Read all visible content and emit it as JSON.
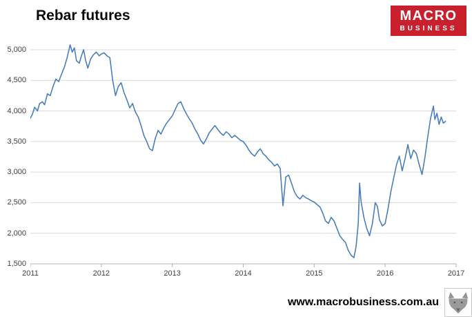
{
  "header": {
    "logo": {
      "line1": "MACRO",
      "line2": "BUSINESS",
      "bg_color": "#c8202c",
      "text_color": "#ffffff"
    }
  },
  "footer": {
    "url": "www.macrobusiness.com.au",
    "wolf_icon": "wolf-logo"
  },
  "chart_data": {
    "type": "line",
    "title": "Rebar futures",
    "xlabel": "",
    "ylabel": "",
    "xlim": [
      2011,
      2017
    ],
    "ylim": [
      1500,
      5000
    ],
    "xticks": [
      2011,
      2012,
      2013,
      2014,
      2015,
      2016,
      2017
    ],
    "yticks": [
      1500,
      2000,
      2500,
      3000,
      3500,
      4000,
      4500,
      5000
    ],
    "grid": "horizontal",
    "legend": "none",
    "line_color": "#4a7ebb",
    "grid_color": "#d9d9d9",
    "axis_color": "#b3b3b3",
    "series": [
      {
        "name": "Rebar futures",
        "points": [
          [
            2011.0,
            3880
          ],
          [
            2011.03,
            3950
          ],
          [
            2011.06,
            4060
          ],
          [
            2011.1,
            4000
          ],
          [
            2011.13,
            4120
          ],
          [
            2011.17,
            4150
          ],
          [
            2011.2,
            4100
          ],
          [
            2011.24,
            4280
          ],
          [
            2011.28,
            4250
          ],
          [
            2011.32,
            4400
          ],
          [
            2011.36,
            4520
          ],
          [
            2011.4,
            4480
          ],
          [
            2011.44,
            4600
          ],
          [
            2011.48,
            4720
          ],
          [
            2011.52,
            4880
          ],
          [
            2011.56,
            5080
          ],
          [
            2011.59,
            4960
          ],
          [
            2011.62,
            5030
          ],
          [
            2011.65,
            4820
          ],
          [
            2011.69,
            4780
          ],
          [
            2011.72,
            4900
          ],
          [
            2011.75,
            5000
          ],
          [
            2011.78,
            4820
          ],
          [
            2011.81,
            4700
          ],
          [
            2011.85,
            4850
          ],
          [
            2011.89,
            4920
          ],
          [
            2011.93,
            4960
          ],
          [
            2011.97,
            4900
          ],
          [
            2012.0,
            4930
          ],
          [
            2012.04,
            4950
          ],
          [
            2012.08,
            4900
          ],
          [
            2012.12,
            4870
          ],
          [
            2012.16,
            4500
          ],
          [
            2012.2,
            4250
          ],
          [
            2012.24,
            4400
          ],
          [
            2012.28,
            4460
          ],
          [
            2012.32,
            4300
          ],
          [
            2012.36,
            4180
          ],
          [
            2012.4,
            4050
          ],
          [
            2012.44,
            4120
          ],
          [
            2012.48,
            3980
          ],
          [
            2012.52,
            3900
          ],
          [
            2012.56,
            3760
          ],
          [
            2012.6,
            3600
          ],
          [
            2012.64,
            3500
          ],
          [
            2012.68,
            3380
          ],
          [
            2012.72,
            3350
          ],
          [
            2012.76,
            3550
          ],
          [
            2012.8,
            3680
          ],
          [
            2012.84,
            3620
          ],
          [
            2012.88,
            3720
          ],
          [
            2012.92,
            3800
          ],
          [
            2012.96,
            3860
          ],
          [
            2013.0,
            3920
          ],
          [
            2013.04,
            4020
          ],
          [
            2013.08,
            4120
          ],
          [
            2013.12,
            4150
          ],
          [
            2013.16,
            4040
          ],
          [
            2013.2,
            3950
          ],
          [
            2013.24,
            3870
          ],
          [
            2013.28,
            3800
          ],
          [
            2013.32,
            3700
          ],
          [
            2013.36,
            3620
          ],
          [
            2013.4,
            3520
          ],
          [
            2013.44,
            3460
          ],
          [
            2013.48,
            3540
          ],
          [
            2013.52,
            3640
          ],
          [
            2013.56,
            3700
          ],
          [
            2013.6,
            3760
          ],
          [
            2013.64,
            3700
          ],
          [
            2013.68,
            3640
          ],
          [
            2013.72,
            3600
          ],
          [
            2013.76,
            3660
          ],
          [
            2013.8,
            3620
          ],
          [
            2013.84,
            3560
          ],
          [
            2013.88,
            3600
          ],
          [
            2013.92,
            3560
          ],
          [
            2013.96,
            3520
          ],
          [
            2014.0,
            3500
          ],
          [
            2014.04,
            3440
          ],
          [
            2014.08,
            3360
          ],
          [
            2014.12,
            3300
          ],
          [
            2014.16,
            3260
          ],
          [
            2014.2,
            3330
          ],
          [
            2014.24,
            3380
          ],
          [
            2014.28,
            3300
          ],
          [
            2014.32,
            3260
          ],
          [
            2014.36,
            3200
          ],
          [
            2014.4,
            3160
          ],
          [
            2014.44,
            3100
          ],
          [
            2014.48,
            3130
          ],
          [
            2014.52,
            3060
          ],
          [
            2014.56,
            2450
          ],
          [
            2014.6,
            2920
          ],
          [
            2014.64,
            2950
          ],
          [
            2014.68,
            2820
          ],
          [
            2014.72,
            2680
          ],
          [
            2014.76,
            2600
          ],
          [
            2014.8,
            2560
          ],
          [
            2014.84,
            2620
          ],
          [
            2014.88,
            2580
          ],
          [
            2014.92,
            2560
          ],
          [
            2014.96,
            2530
          ],
          [
            2015.0,
            2510
          ],
          [
            2015.04,
            2470
          ],
          [
            2015.08,
            2430
          ],
          [
            2015.12,
            2330
          ],
          [
            2015.16,
            2200
          ],
          [
            2015.2,
            2160
          ],
          [
            2015.24,
            2260
          ],
          [
            2015.28,
            2200
          ],
          [
            2015.32,
            2080
          ],
          [
            2015.36,
            1960
          ],
          [
            2015.4,
            1900
          ],
          [
            2015.44,
            1850
          ],
          [
            2015.48,
            1720
          ],
          [
            2015.52,
            1640
          ],
          [
            2015.56,
            1600
          ],
          [
            2015.59,
            1780
          ],
          [
            2015.62,
            2150
          ],
          [
            2015.64,
            2820
          ],
          [
            2015.66,
            2520
          ],
          [
            2015.7,
            2260
          ],
          [
            2015.74,
            2080
          ],
          [
            2015.78,
            1960
          ],
          [
            2015.82,
            2160
          ],
          [
            2015.86,
            2500
          ],
          [
            2015.89,
            2440
          ],
          [
            2015.92,
            2220
          ],
          [
            2015.96,
            2120
          ],
          [
            2016.0,
            2160
          ],
          [
            2016.04,
            2400
          ],
          [
            2016.08,
            2680
          ],
          [
            2016.12,
            2900
          ],
          [
            2016.16,
            3120
          ],
          [
            2016.2,
            3260
          ],
          [
            2016.24,
            3020
          ],
          [
            2016.28,
            3220
          ],
          [
            2016.32,
            3450
          ],
          [
            2016.36,
            3220
          ],
          [
            2016.4,
            3360
          ],
          [
            2016.44,
            3300
          ],
          [
            2016.48,
            3120
          ],
          [
            2016.52,
            2960
          ],
          [
            2016.56,
            3240
          ],
          [
            2016.6,
            3580
          ],
          [
            2016.64,
            3880
          ],
          [
            2016.68,
            4080
          ],
          [
            2016.7,
            3860
          ],
          [
            2016.73,
            3960
          ],
          [
            2016.76,
            3780
          ],
          [
            2016.79,
            3900
          ],
          [
            2016.82,
            3800
          ],
          [
            2016.85,
            3830
          ]
        ]
      }
    ]
  }
}
